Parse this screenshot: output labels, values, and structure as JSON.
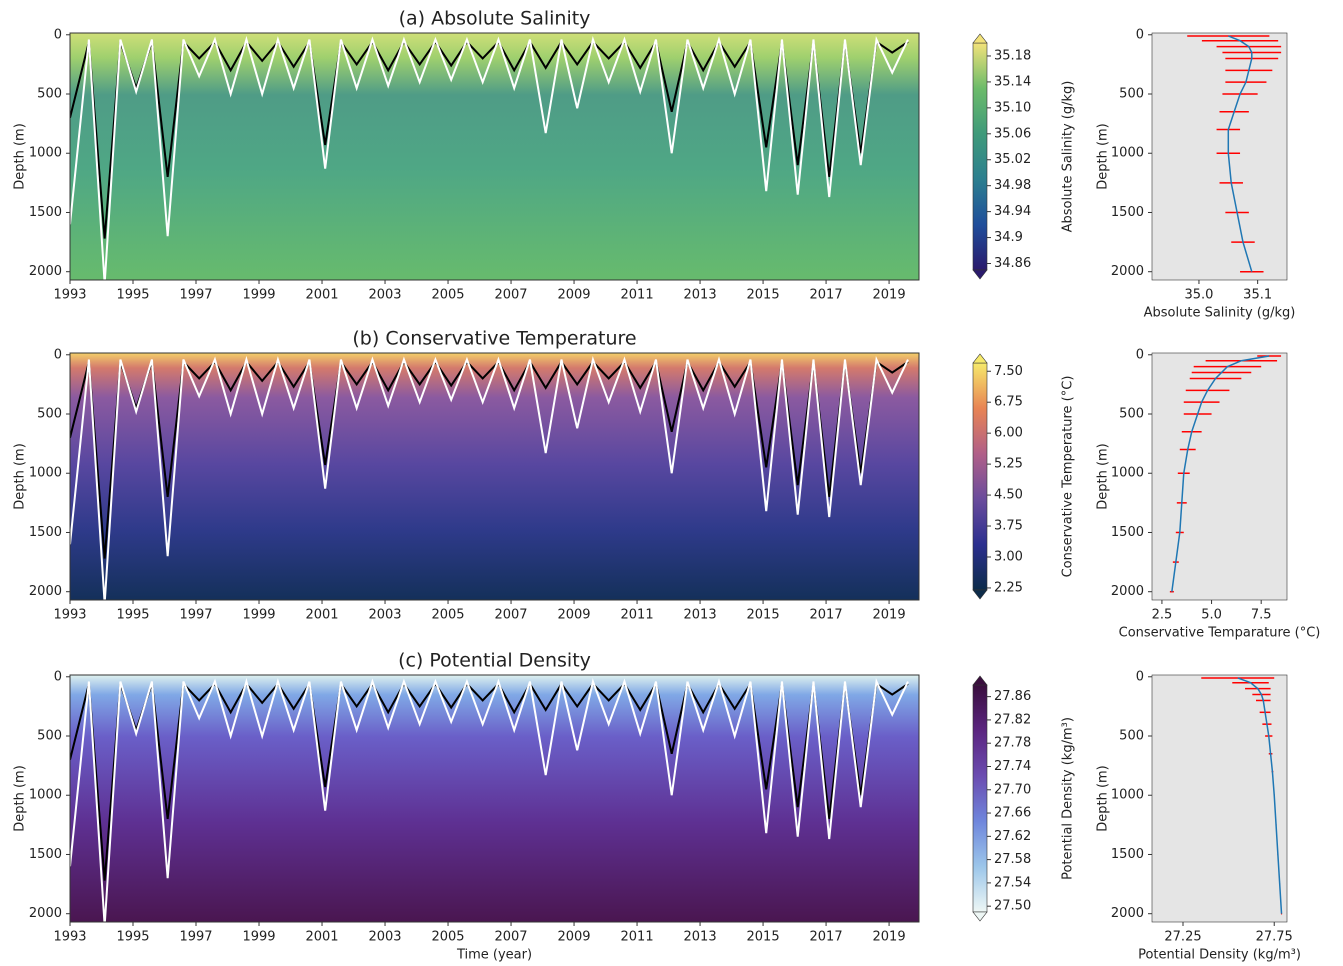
{
  "chart_data": [
    {
      "type": "contour",
      "title": "(a) Absolute Salinity",
      "ylabel": "Depth (m)",
      "xlim": [
        1993,
        2019.95
      ],
      "xticks": [
        1993,
        1995,
        1997,
        1999,
        2001,
        2003,
        2005,
        2007,
        2009,
        2011,
        2013,
        2015,
        2017,
        2019
      ],
      "ylim": [
        2070,
        -15
      ],
      "yticks": [
        0,
        500,
        1000,
        1500,
        2000
      ],
      "colorbar": {
        "label": "Absolute Salinity (g/kg)",
        "lim": [
          34.85,
          35.2
        ],
        "ticks": [
          34.86,
          34.9,
          34.94,
          34.98,
          35.02,
          35.06,
          {
            "value": 35.1,
            "label": "35.10"
          },
          35.14,
          35.18
        ],
        "colors": [
          "#2a1a6c",
          "#1f4e9b",
          "#2c7f8f",
          "#3f9a7a",
          "#6cbb6a",
          "#f2e27a"
        ]
      },
      "x": [
        1993.0,
        1993.6,
        1994.1,
        1994.6,
        1995.1,
        1995.6,
        1996.1,
        1996.6,
        1997.1,
        1997.6,
        1998.1,
        1998.6,
        1999.1,
        1999.6,
        2000.1,
        2000.6,
        2001.1,
        2001.6,
        2002.1,
        2002.6,
        2003.1,
        2003.6,
        2004.1,
        2004.6,
        2005.1,
        2005.6,
        2006.1,
        2006.6,
        2007.1,
        2007.6,
        2008.1,
        2008.6,
        2009.1,
        2009.6,
        2010.1,
        2010.6,
        2011.1,
        2011.6,
        2012.1,
        2012.6,
        2013.1,
        2013.6,
        2014.1,
        2014.6,
        2015.1,
        2015.6,
        2016.1,
        2016.6,
        2017.1,
        2017.6,
        2018.1,
        2018.6,
        2019.1,
        2019.6
      ],
      "series": [
        {
          "color": "#000000",
          "values": [
            700,
            60,
            1720,
            60,
            450,
            60,
            1200,
            60,
            200,
            60,
            300,
            60,
            220,
            60,
            270,
            60,
            930,
            60,
            250,
            60,
            300,
            60,
            250,
            60,
            260,
            60,
            200,
            60,
            300,
            60,
            280,
            60,
            250,
            60,
            200,
            60,
            280,
            60,
            650,
            60,
            300,
            60,
            270,
            60,
            950,
            60,
            1100,
            60,
            1200,
            60,
            1000,
            60,
            150,
            60
          ]
        },
        {
          "color": "#ffffff",
          "values": [
            1600,
            40,
            2100,
            40,
            480,
            40,
            1700,
            40,
            350,
            40,
            500,
            40,
            500,
            40,
            450,
            40,
            1130,
            40,
            450,
            40,
            430,
            40,
            400,
            40,
            380,
            40,
            400,
            40,
            450,
            40,
            830,
            40,
            620,
            40,
            400,
            40,
            480,
            40,
            1000,
            40,
            450,
            40,
            500,
            40,
            1320,
            40,
            1350,
            40,
            1370,
            40,
            1100,
            40,
            320,
            40
          ]
        }
      ]
    },
    {
      "type": "contour",
      "title": "(b) Conservative Temperature",
      "ylabel": "Depth (m)",
      "xlim": [
        1993,
        2019.95
      ],
      "xticks": [
        1993,
        1995,
        1997,
        1999,
        2001,
        2003,
        2005,
        2007,
        2009,
        2011,
        2013,
        2015,
        2017,
        2019
      ],
      "ylim": [
        2070,
        -15
      ],
      "yticks": [
        0,
        500,
        1000,
        1500,
        2000
      ],
      "colorbar": {
        "label": "Conservative Temperature (°C)",
        "lim": [
          2.2,
          7.7
        ],
        "ticks": [
          2.25,
          {
            "value": 3,
            "label": "3.00"
          },
          3.75,
          {
            "value": 4.5,
            "label": "4.50"
          },
          5.25,
          {
            "value": 6,
            "label": "6.00"
          },
          6.75,
          {
            "value": 7.5,
            "label": "7.50"
          }
        ],
        "colors": [
          "#0d2c4a",
          "#2b2f8f",
          "#6a4c9c",
          "#b05f88",
          "#e88454",
          "#f6e96b"
        ]
      }
    },
    {
      "type": "contour",
      "title": "(c) Potential Density",
      "ylabel": "Depth (m)",
      "xlabel": "Time (year)",
      "xlim": [
        1993,
        2019.95
      ],
      "xticks": [
        1993,
        1995,
        1997,
        1999,
        2001,
        2003,
        2005,
        2007,
        2009,
        2011,
        2013,
        2015,
        2017,
        2019
      ],
      "ylim": [
        2070,
        -15
      ],
      "yticks": [
        0,
        500,
        1000,
        1500,
        2000
      ],
      "colorbar": {
        "label": "Potential Density (kg/m³)",
        "lim": [
          27.49,
          27.88
        ],
        "ticks": [
          {
            "value": 27.5,
            "label": "27.50"
          },
          27.54,
          27.58,
          27.62,
          27.66,
          {
            "value": 27.7,
            "label": "27.70"
          },
          27.74,
          27.78,
          27.82,
          27.86
        ],
        "colors": [
          "#eef7f5",
          "#9cc6ea",
          "#6f86dc",
          "#6b4cb0",
          "#5b2580",
          "#3a0f3e"
        ]
      }
    },
    {
      "type": "profile",
      "ylabel": "Depth (m)",
      "xlabel": "Absolute Salinity (g/kg)",
      "xlim": [
        34.92,
        35.15
      ],
      "xticks": [
        {
          "value": 35,
          "label": "35.0"
        },
        35.1
      ],
      "ylim": [
        2070,
        -15
      ],
      "yticks": [
        0,
        500,
        1000,
        1500,
        2000
      ],
      "depth": [
        10,
        50,
        100,
        150,
        200,
        300,
        400,
        500,
        650,
        800,
        1000,
        1250,
        1500,
        1750,
        2000
      ],
      "values": [
        35.05,
        35.07,
        35.085,
        35.09,
        35.09,
        35.085,
        35.08,
        35.07,
        35.06,
        35.05,
        35.05,
        35.055,
        35.065,
        35.075,
        35.09
      ],
      "errors": [
        0.07,
        0.065,
        0.055,
        0.05,
        0.045,
        0.04,
        0.035,
        0.03,
        0.025,
        0.02,
        0.02,
        0.02,
        0.02,
        0.02,
        0.02
      ]
    },
    {
      "type": "profile",
      "ylabel": "Depth (m)",
      "xlabel": "Conservative Temparature (°C)",
      "xlim": [
        2.0,
        8.8
      ],
      "xticks": [
        2.5,
        {
          "value": 5,
          "label": "5.0"
        },
        7.5
      ],
      "ylim": [
        2070,
        -15
      ],
      "yticks": [
        0,
        500,
        1000,
        1500,
        2000
      ],
      "depth": [
        10,
        50,
        100,
        150,
        200,
        300,
        400,
        500,
        650,
        800,
        1000,
        1250,
        1500,
        1750,
        2000
      ],
      "values": [
        7.9,
        6.5,
        5.8,
        5.5,
        5.2,
        4.8,
        4.5,
        4.3,
        4.0,
        3.8,
        3.6,
        3.5,
        3.4,
        3.2,
        3.0
      ],
      "errors": [
        0.6,
        1.8,
        1.7,
        1.5,
        1.3,
        1.1,
        0.9,
        0.7,
        0.5,
        0.4,
        0.3,
        0.25,
        0.2,
        0.15,
        0.1
      ]
    },
    {
      "type": "profile",
      "ylabel": "Depth (m)",
      "xlabel": "Potential Density (kg/m³)",
      "xlim": [
        27.08,
        27.82
      ],
      "xticks": [
        27.25,
        27.75
      ],
      "ylim": [
        2070,
        -15
      ],
      "yticks": [
        0,
        500,
        1000,
        1500,
        2000
      ],
      "depth": [
        10,
        50,
        100,
        150,
        200,
        300,
        400,
        500,
        650,
        800,
        1000,
        1250,
        1500,
        1750,
        2000
      ],
      "values": [
        27.55,
        27.62,
        27.66,
        27.68,
        27.69,
        27.7,
        27.71,
        27.72,
        27.73,
        27.74,
        27.75,
        27.76,
        27.77,
        27.78,
        27.79
      ],
      "errors": [
        0.2,
        0.1,
        0.07,
        0.05,
        0.04,
        0.03,
        0.025,
        0.02,
        0.01,
        0.005,
        0.004,
        0.003,
        0.003,
        0.003,
        0.003
      ]
    }
  ]
}
